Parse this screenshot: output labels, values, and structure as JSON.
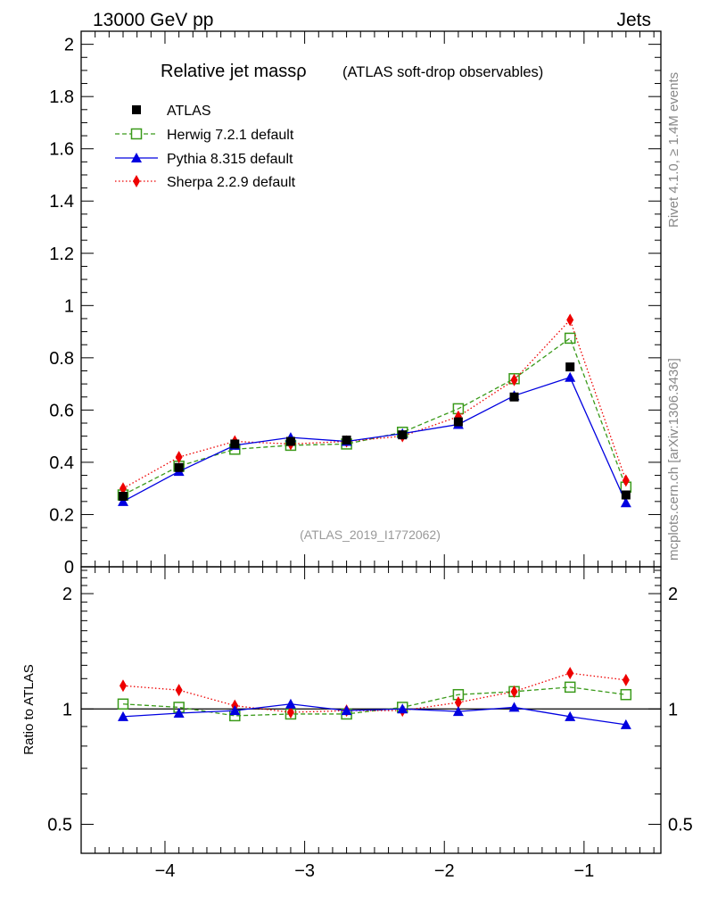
{
  "header": {
    "left": "13000 GeV pp",
    "right": "Jets"
  },
  "side_labels": {
    "rivet": "Rivet 4.1.0, ≥ 1.4M events",
    "mcplots": "mcplots.cern.ch [arXiv:1306.3436]"
  },
  "watermark": "(ATLAS_2019_I1772062)",
  "colors": {
    "atlas": "#000000",
    "herwig": "#3a9a1a",
    "pythia": "#0000e0",
    "sherpa": "#ee0000"
  },
  "chart_data": [
    {
      "type": "line",
      "panel": "main",
      "title": "Relative jet massρ",
      "subtitle": "(ATLAS soft-drop observables)",
      "xlabel": "",
      "ylabel": "",
      "xlim": [
        -4.6,
        -0.45
      ],
      "ylim": [
        0,
        2.05
      ],
      "y_tick_labels": [
        "0",
        "0.2",
        "0.4",
        "0.6",
        "0.8",
        "1",
        "1.2",
        "1.4",
        "1.6",
        "1.8",
        "2"
      ],
      "x": [
        -4.3,
        -3.9,
        -3.5,
        -3.1,
        -2.7,
        -2.3,
        -1.9,
        -1.5,
        -1.1,
        -0.7
      ],
      "series": [
        {
          "name": "ATLAS",
          "key": "atlas",
          "values": [
            0.27,
            0.38,
            0.47,
            0.48,
            0.485,
            0.505,
            0.555,
            0.65,
            0.765,
            0.275
          ]
        },
        {
          "name": "Herwig 7.2.1 default",
          "key": "herwig",
          "values": [
            0.275,
            0.385,
            0.45,
            0.465,
            0.47,
            0.515,
            0.605,
            0.72,
            0.875,
            0.305
          ]
        },
        {
          "name": "Pythia 8.315 default",
          "key": "pythia",
          "values": [
            0.25,
            0.365,
            0.465,
            0.495,
            0.48,
            0.51,
            0.545,
            0.655,
            0.725,
            0.245
          ]
        },
        {
          "name": "Sherpa 2.2.9 default",
          "key": "sherpa",
          "values": [
            0.3,
            0.42,
            0.48,
            0.47,
            0.48,
            0.5,
            0.575,
            0.715,
            0.945,
            0.33
          ]
        }
      ],
      "legend_position": "top-left"
    },
    {
      "type": "line",
      "panel": "ratio",
      "ylabel": "Ratio to ATLAS",
      "xlim": [
        -4.6,
        -0.45
      ],
      "ylim": [
        0.42,
        2.35
      ],
      "y_scale": "log",
      "y_ticks": [
        0.5,
        1,
        2
      ],
      "y_tick_labels": [
        "0.5",
        "1",
        "2"
      ],
      "x_ticks": [
        -4,
        -3,
        -2,
        -1
      ],
      "x_tick_labels": [
        "−4",
        "−3",
        "−2",
        "−1"
      ],
      "x": [
        -4.3,
        -3.9,
        -3.5,
        -3.1,
        -2.7,
        -2.3,
        -1.9,
        -1.5,
        -1.1,
        -0.7
      ],
      "series": [
        {
          "name": "Herwig 7.2.1 default",
          "key": "herwig",
          "values": [
            1.03,
            1.01,
            0.96,
            0.97,
            0.97,
            1.01,
            1.09,
            1.11,
            1.14,
            1.09
          ]
        },
        {
          "name": "Pythia 8.315 default",
          "key": "pythia",
          "values": [
            0.955,
            0.975,
            0.99,
            1.03,
            0.99,
            1.0,
            0.985,
            1.01,
            0.955,
            0.91
          ]
        },
        {
          "name": "Sherpa 2.2.9 default",
          "key": "sherpa",
          "values": [
            1.15,
            1.12,
            1.02,
            0.98,
            0.99,
            0.99,
            1.04,
            1.11,
            1.24,
            1.19
          ]
        }
      ]
    }
  ]
}
